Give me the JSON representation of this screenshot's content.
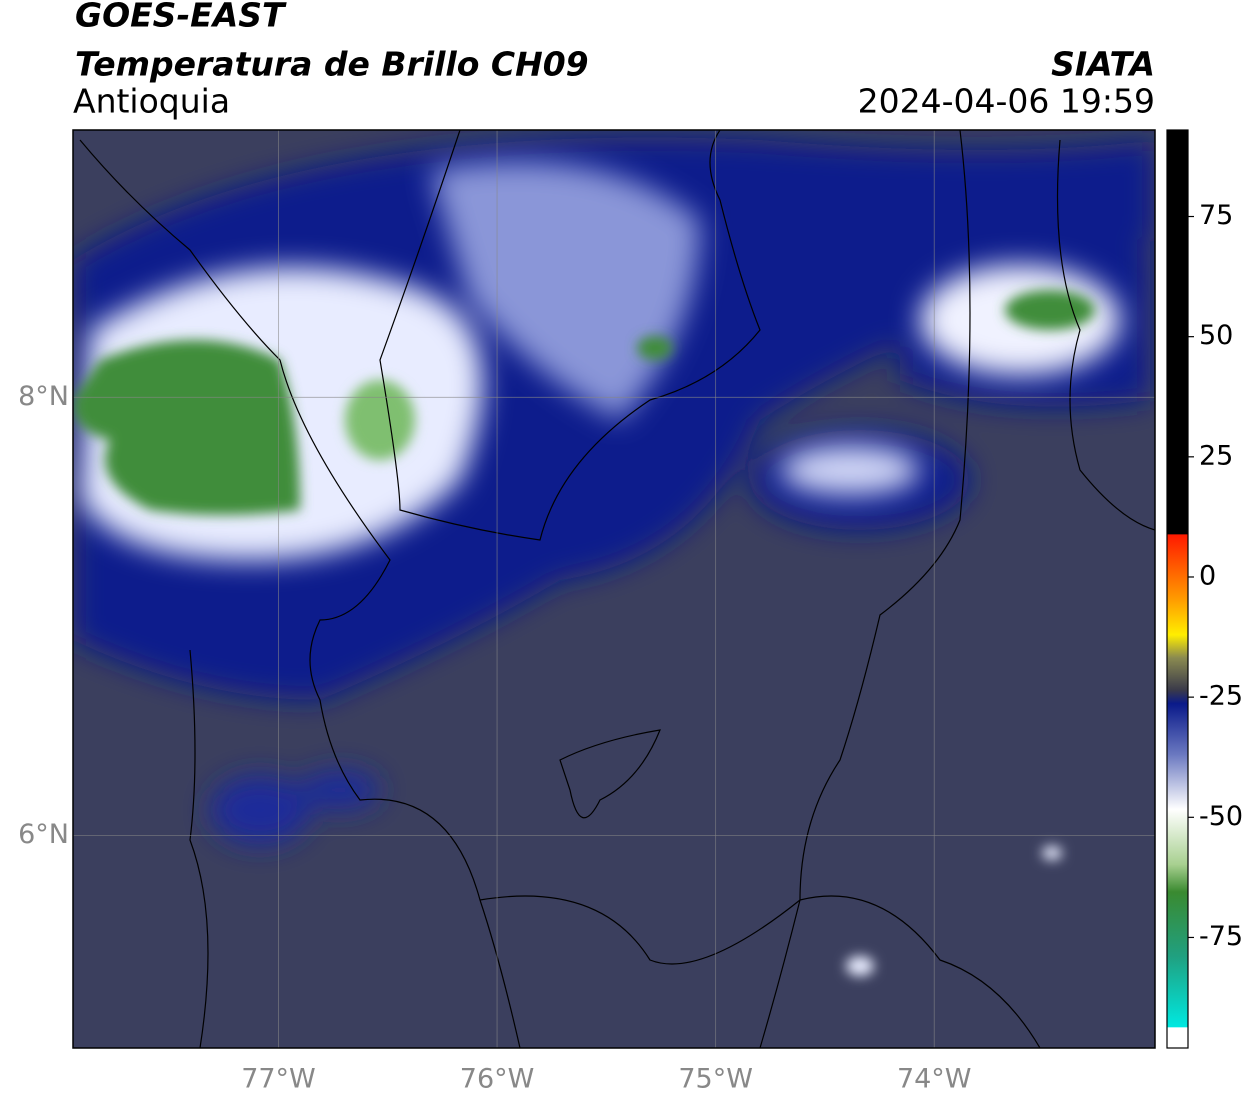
{
  "header": {
    "satellite": "GOES-EAST",
    "product": "Temperatura de Brillo CH09",
    "region": "Antioquia",
    "source": "SIATA",
    "datetime": "2024-04-06 19:59"
  },
  "map": {
    "xlim": [
      -77.94,
      -72.99
    ],
    "ylim": [
      5.03,
      9.22
    ],
    "lon_ticks": [
      {
        "value": -77,
        "label": "77°W"
      },
      {
        "value": -76,
        "label": "76°W"
      },
      {
        "value": -75,
        "label": "75°W"
      },
      {
        "value": -74,
        "label": "74°W"
      }
    ],
    "lat_ticks": [
      {
        "value": 8,
        "label": "8°N"
      },
      {
        "value": 6,
        "label": "6°N"
      }
    ],
    "grid": true
  },
  "colorbar": {
    "lim": [
      -98,
      93
    ],
    "ticks": [
      75,
      50,
      25,
      0,
      -25,
      -50,
      -75
    ]
  }
}
